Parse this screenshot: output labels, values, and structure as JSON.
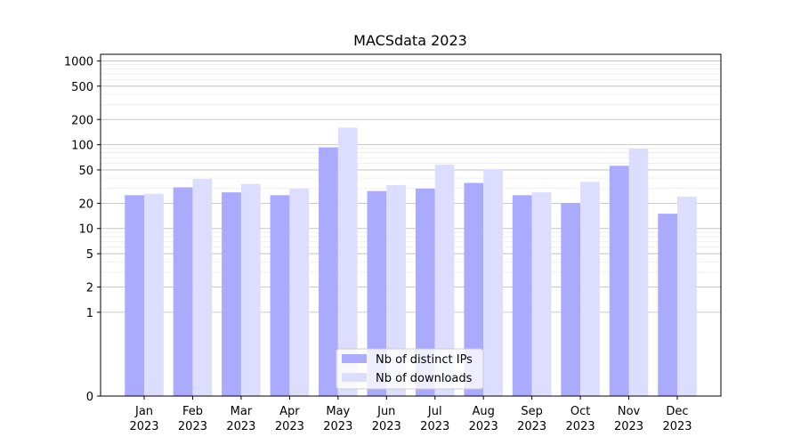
{
  "chart_data": {
    "type": "bar",
    "title": "MACSdata 2023",
    "xlabel": "",
    "ylabel": "",
    "yscale": "symlog",
    "ylim": [
      0,
      1200
    ],
    "yticks": [
      0,
      1,
      2,
      5,
      10,
      20,
      50,
      100,
      200,
      500,
      1000
    ],
    "grid": true,
    "legend_position": "bottom-center",
    "categories": [
      {
        "month": "Jan",
        "year": "2023"
      },
      {
        "month": "Feb",
        "year": "2023"
      },
      {
        "month": "Mar",
        "year": "2023"
      },
      {
        "month": "Apr",
        "year": "2023"
      },
      {
        "month": "May",
        "year": "2023"
      },
      {
        "month": "Jun",
        "year": "2023"
      },
      {
        "month": "Jul",
        "year": "2023"
      },
      {
        "month": "Aug",
        "year": "2023"
      },
      {
        "month": "Sep",
        "year": "2023"
      },
      {
        "month": "Oct",
        "year": "2023"
      },
      {
        "month": "Nov",
        "year": "2023"
      },
      {
        "month": "Dec",
        "year": "2023"
      }
    ],
    "series": [
      {
        "name": "Nb of distinct IPs",
        "color": "#aaaaff",
        "values": [
          25,
          31,
          27,
          25,
          93,
          28,
          30,
          35,
          25,
          20,
          56,
          15
        ]
      },
      {
        "name": "Nb of downloads",
        "color": "#ddddff",
        "values": [
          26,
          39,
          34,
          30,
          160,
          33,
          58,
          51,
          27,
          36,
          90,
          24
        ]
      }
    ]
  }
}
